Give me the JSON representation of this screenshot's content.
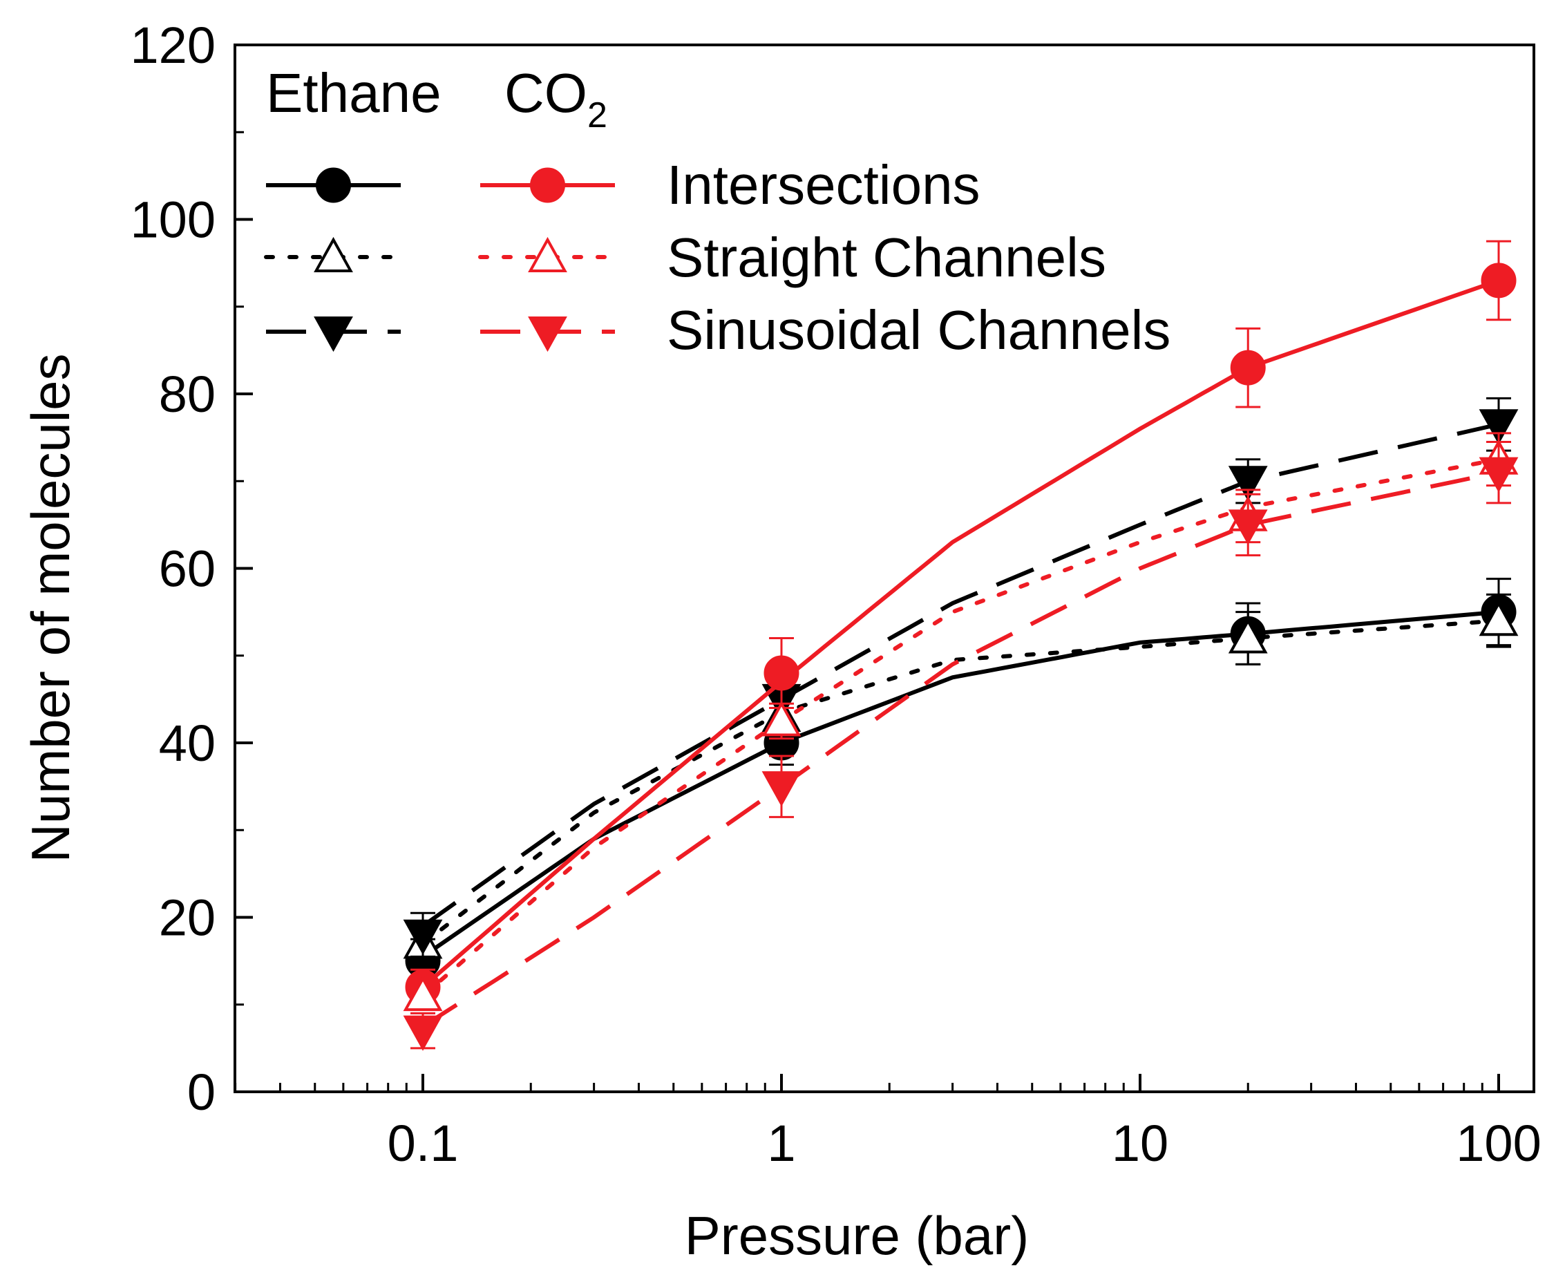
{
  "chart_data": {
    "type": "line",
    "xscale": "log",
    "xlabel": "Pressure (bar)",
    "ylabel": "Number of molecules",
    "xlim": [
      0.03,
      110
    ],
    "ylim": [
      0,
      120
    ],
    "x_ticks": [
      0.1,
      1,
      10,
      100
    ],
    "x_tick_labels": [
      "0.1",
      "1",
      "10",
      "100"
    ],
    "y_ticks": [
      0,
      20,
      40,
      60,
      80,
      100,
      120
    ],
    "y_tick_labels": [
      "0",
      "20",
      "40",
      "60",
      "80",
      "100",
      "120"
    ],
    "x": [
      0.1,
      1,
      20,
      100
    ],
    "legend": {
      "position": "top-left",
      "column_headers": [
        "Ethane",
        "CO"
      ],
      "co2_subscript": "2",
      "rows": [
        "Intersections",
        "Straight Channels",
        "Sinusoidal Channels"
      ]
    },
    "series": [
      {
        "name": "Ethane Intersections",
        "gas": "Ethane",
        "site": "Intersections",
        "color": "#000000",
        "marker": "circle",
        "filled": true,
        "line": "solid",
        "values": [
          15,
          40,
          52.5,
          55
        ],
        "errors": [
          2.5,
          2.5,
          3.5,
          3.8
        ],
        "fit": [
          [
            0.1,
            15.5
          ],
          [
            0.3,
            29
          ],
          [
            1,
            40
          ],
          [
            3,
            47.5
          ],
          [
            10,
            51.5
          ],
          [
            20,
            52.5
          ],
          [
            100,
            55
          ]
        ]
      },
      {
        "name": "Ethane Straight Channels",
        "gas": "Ethane",
        "site": "Straight Channels",
        "color": "#000000",
        "marker": "triangle-up",
        "filled": false,
        "line": "dotted",
        "values": [
          17,
          43,
          52,
          54
        ],
        "errors": [
          2.5,
          2.5,
          3,
          3
        ],
        "fit": [
          [
            0.1,
            17
          ],
          [
            0.3,
            32
          ],
          [
            1,
            43.5
          ],
          [
            3,
            49.5
          ],
          [
            10,
            51
          ],
          [
            20,
            52
          ],
          [
            100,
            54
          ]
        ]
      },
      {
        "name": "Ethane Sinusoidal Channels",
        "gas": "Ethane",
        "site": "Sinusoidal Channels",
        "color": "#000000",
        "marker": "triangle-down",
        "filled": true,
        "line": "dashed",
        "values": [
          18,
          45,
          70,
          76.5
        ],
        "errors": [
          2.5,
          2.5,
          2.5,
          3
        ],
        "fit": [
          [
            0.1,
            19
          ],
          [
            0.3,
            33
          ],
          [
            1,
            45
          ],
          [
            3,
            56
          ],
          [
            10,
            65
          ],
          [
            20,
            70
          ],
          [
            100,
            76.5
          ]
        ]
      },
      {
        "name": "CO2 Intersections",
        "gas": "CO2",
        "site": "Intersections",
        "color": "#ee1c24",
        "marker": "circle",
        "filled": true,
        "line": "solid",
        "values": [
          12,
          48,
          83,
          93
        ],
        "errors": [
          2,
          4,
          4.5,
          4.5
        ],
        "fit": [
          [
            0.1,
            12
          ],
          [
            0.3,
            29
          ],
          [
            1,
            47
          ],
          [
            3,
            63
          ],
          [
            10,
            76
          ],
          [
            20,
            83
          ],
          [
            100,
            93
          ]
        ]
      },
      {
        "name": "CO2 Straight Channels",
        "gas": "CO2",
        "site": "Straight Channels",
        "color": "#ee1c24",
        "marker": "triangle-up",
        "filled": false,
        "line": "dotted",
        "values": [
          11,
          42.5,
          66,
          72.5
        ],
        "errors": [
          1.5,
          2,
          3,
          3
        ],
        "fit": [
          [
            0.1,
            11
          ],
          [
            0.3,
            28
          ],
          [
            1,
            42.5
          ],
          [
            3,
            55
          ],
          [
            10,
            63
          ],
          [
            20,
            67
          ],
          [
            100,
            72.5
          ]
        ]
      },
      {
        "name": "CO2 Sinusoidal Channels",
        "gas": "CO2",
        "site": "Sinusoidal Channels",
        "color": "#ee1c24",
        "marker": "triangle-down",
        "filled": true,
        "line": "dashed",
        "values": [
          7,
          35,
          65,
          71
        ],
        "errors": [
          2,
          3.5,
          3.5,
          3.5
        ],
        "fit": [
          [
            0.1,
            7.5
          ],
          [
            0.3,
            20
          ],
          [
            1,
            35
          ],
          [
            3,
            49
          ],
          [
            10,
            60
          ],
          [
            20,
            65
          ],
          [
            100,
            71
          ]
        ]
      }
    ]
  }
}
